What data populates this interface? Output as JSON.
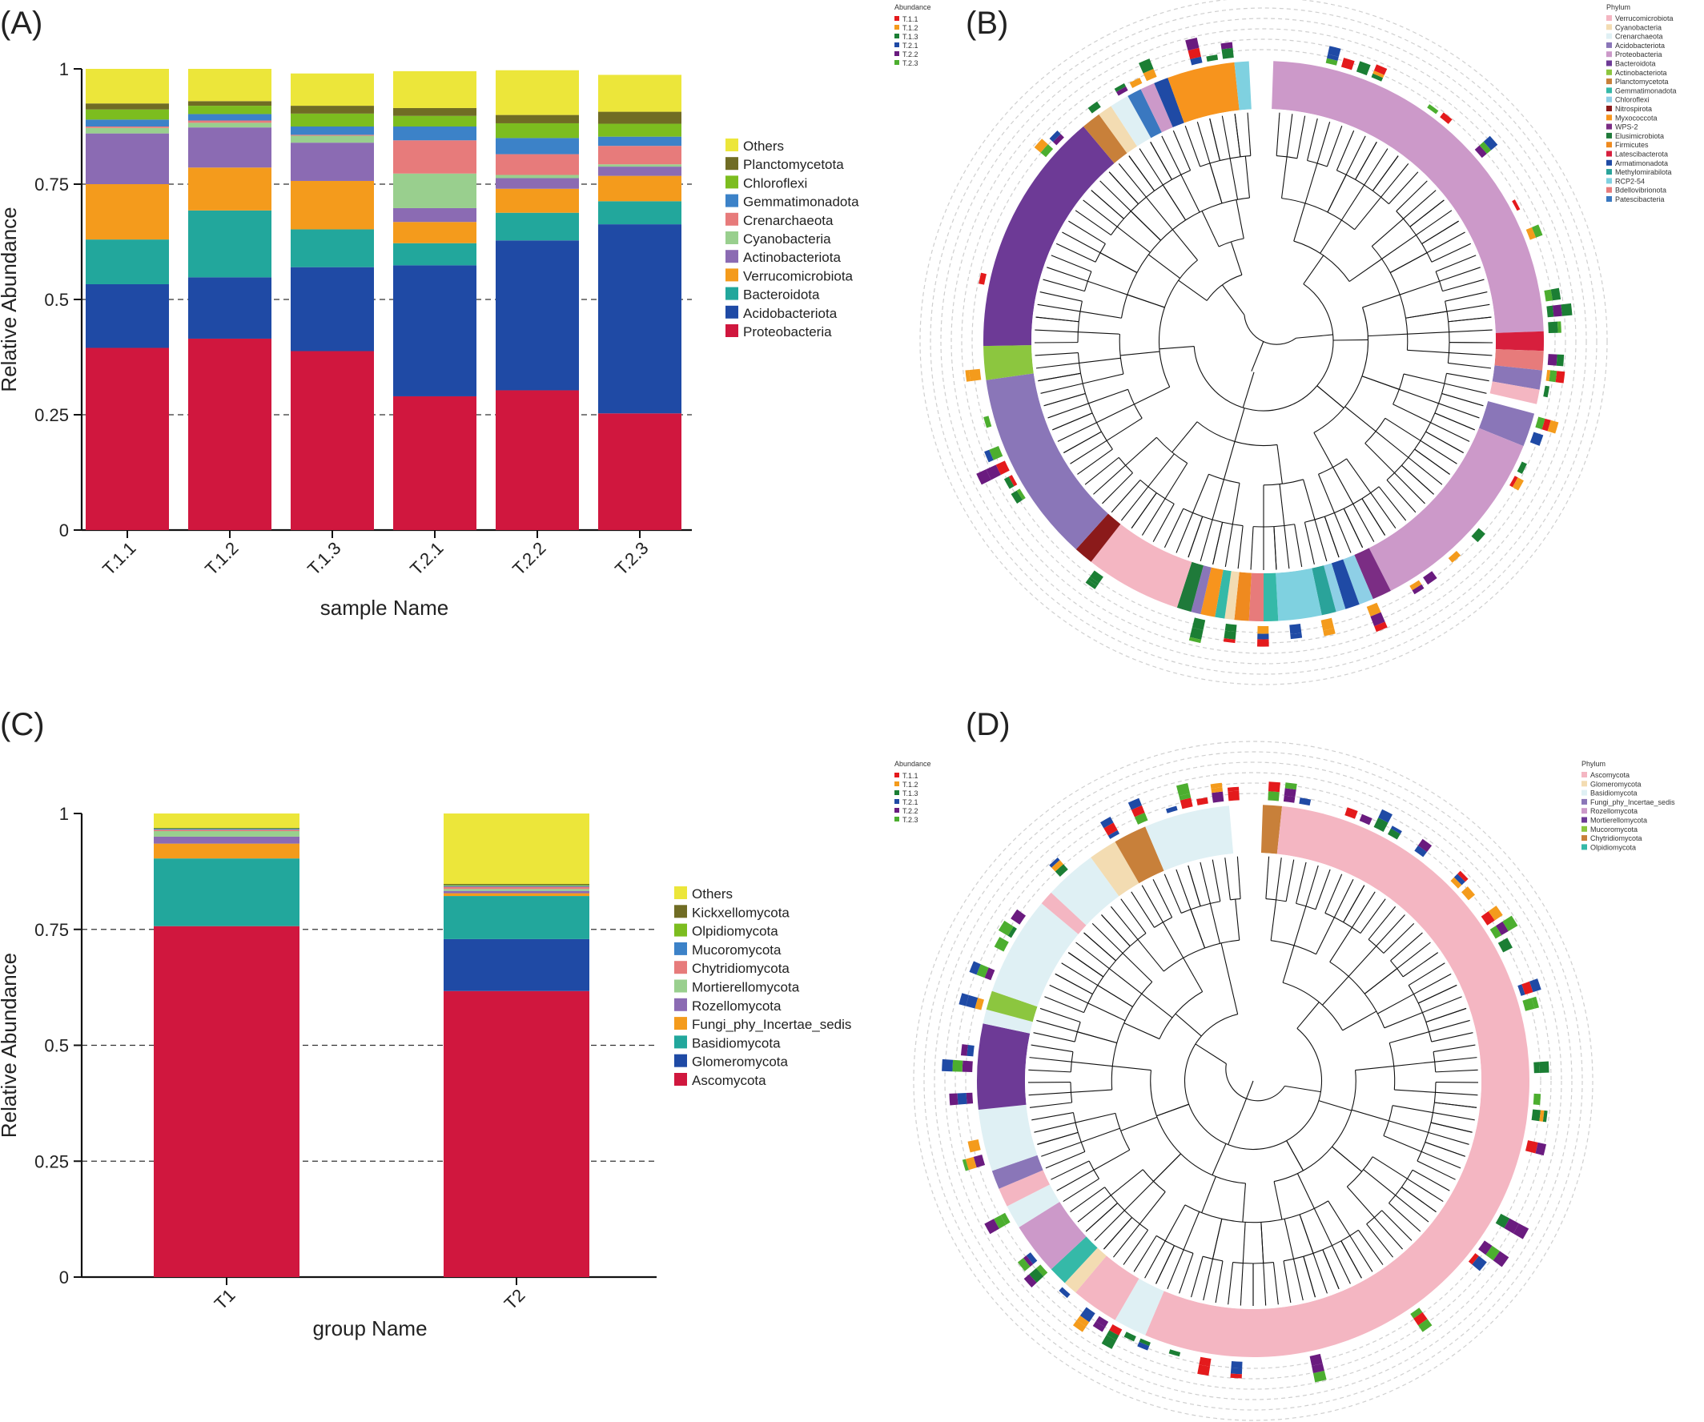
{
  "panels": {
    "a": "(A)",
    "b": "(B)",
    "c": "(C)",
    "d": "(D)"
  },
  "chart_data": [
    {
      "panel": "(A)",
      "type": "bar",
      "stacked": true,
      "categories": [
        "T.1.1",
        "T.1.2",
        "T.1.3",
        "T.2.1",
        "T.2.2",
        "T.2.3"
      ],
      "xlabel": "sample Name",
      "ylabel": "Relative Abundance",
      "ylim": [
        0,
        1
      ],
      "yticks": [
        "0",
        "0.25",
        "0.5",
        "0.75",
        "1"
      ],
      "grid": "dashed at 0.25, 0.5, 0.75",
      "legend_position": "right",
      "series": [
        {
          "name": "Proteobacteria",
          "color": "#d0173e",
          "values": [
            0.395,
            0.415,
            0.388,
            0.29,
            0.303,
            0.253
          ]
        },
        {
          "name": "Acidobacteriota",
          "color": "#1f4aa5",
          "values": [
            0.138,
            0.133,
            0.182,
            0.284,
            0.325,
            0.41
          ]
        },
        {
          "name": "Bacteroidota",
          "color": "#22a79c",
          "values": [
            0.097,
            0.145,
            0.082,
            0.048,
            0.06,
            0.05
          ]
        },
        {
          "name": "Verrucomicrobiota",
          "color": "#f49b1c",
          "values": [
            0.12,
            0.093,
            0.105,
            0.046,
            0.052,
            0.055
          ]
        },
        {
          "name": "Actinobacteriota",
          "color": "#8b6bb3",
          "values": [
            0.11,
            0.087,
            0.083,
            0.03,
            0.023,
            0.02
          ]
        },
        {
          "name": "Cyanobacteria",
          "color": "#99cf8e",
          "values": [
            0.012,
            0.01,
            0.015,
            0.075,
            0.007,
            0.005
          ]
        },
        {
          "name": "Crenarchaeota",
          "color": "#e77b7b",
          "values": [
            0.003,
            0.005,
            0.002,
            0.072,
            0.045,
            0.04
          ]
        },
        {
          "name": "Gemmatimonadota",
          "color": "#3c82c8",
          "values": [
            0.015,
            0.014,
            0.018,
            0.03,
            0.035,
            0.02
          ]
        },
        {
          "name": "Chloroflexi",
          "color": "#7cbd1f",
          "values": [
            0.022,
            0.018,
            0.028,
            0.023,
            0.032,
            0.028
          ]
        },
        {
          "name": "Planctomycetota",
          "color": "#706c24",
          "values": [
            0.013,
            0.01,
            0.017,
            0.017,
            0.018,
            0.026
          ]
        },
        {
          "name": "Others",
          "color": "#ece63a",
          "values": [
            0.075,
            0.07,
            0.07,
            0.08,
            0.097,
            0.08
          ]
        }
      ],
      "legend": [
        "Others",
        "Planctomycetota",
        "Chloroflexi",
        "Gemmatimonadota",
        "Crenarchaeota",
        "Cyanobacteria",
        "Actinobacteriota",
        "Verrucomicrobiota",
        "Bacteroidota",
        "Acidobacteriota",
        "Proteobacteria"
      ]
    },
    {
      "panel": "(C)",
      "type": "bar",
      "stacked": true,
      "categories": [
        "T1",
        "T2"
      ],
      "xlabel": "group Name",
      "ylabel": "Relative Abundance",
      "ylim": [
        0,
        1
      ],
      "yticks": [
        "0",
        "0.25",
        "0.5",
        "0.75",
        "1"
      ],
      "grid": "dashed at 0.25, 0.5, 0.75",
      "legend_position": "right",
      "series": [
        {
          "name": "Ascomycota",
          "color": "#d0173e",
          "values": [
            0.757,
            0.617
          ]
        },
        {
          "name": "Glomeromycota",
          "color": "#1f4aa5",
          "values": [
            0.0,
            0.112
          ]
        },
        {
          "name": "Basidiomycota",
          "color": "#22a79c",
          "values": [
            0.146,
            0.093
          ]
        },
        {
          "name": "Fungi_phy_Incertae_sedis",
          "color": "#f49b1c",
          "values": [
            0.032,
            0.006
          ]
        },
        {
          "name": "Rozellomycota",
          "color": "#8b6bb3",
          "values": [
            0.015,
            0.005
          ]
        },
        {
          "name": "Mortierellomycota",
          "color": "#99cf8e",
          "values": [
            0.012,
            0.004
          ]
        },
        {
          "name": "Chytridiomycota",
          "color": "#e77b7b",
          "values": [
            0.003,
            0.005
          ]
        },
        {
          "name": "Mucoromycota",
          "color": "#3c82c8",
          "values": [
            0.002,
            0.002
          ]
        },
        {
          "name": "Olpidiomycota",
          "color": "#7cbd1f",
          "values": [
            0.001,
            0.002
          ]
        },
        {
          "name": "Kickxellomycota",
          "color": "#706c24",
          "values": [
            0.001,
            0.002
          ]
        },
        {
          "name": "Others",
          "color": "#ece63a",
          "values": [
            0.031,
            0.152
          ]
        }
      ],
      "legend": [
        "Others",
        "Kickxellomycota",
        "Olpidiomycota",
        "Mucoromycota",
        "Chytridiomycota",
        "Mortierellomycota",
        "Rozellomycota",
        "Fungi_phy_Incertae_sedis",
        "Basidiomycota",
        "Glomeromycota",
        "Ascomycota"
      ]
    },
    {
      "panel": "(B)",
      "type": "circular-tree",
      "abundance_legend_title": "Abundance",
      "abundance_legend": [
        {
          "name": "T.1.1",
          "color": "#e41a1c"
        },
        {
          "name": "T.1.2",
          "color": "#f49b1c"
        },
        {
          "name": "T.1.3",
          "color": "#1b7e34"
        },
        {
          "name": "T.2.1",
          "color": "#1f4aa5"
        },
        {
          "name": "T.2.2",
          "color": "#6a1b7f"
        },
        {
          "name": "T.2.3",
          "color": "#4cae2f"
        }
      ],
      "phylum_legend_title": "Phylum",
      "phylum_legend": [
        {
          "name": "Verrucomicrobiota",
          "color": "#f4b6c2"
        },
        {
          "name": "Cyanobacteria",
          "color": "#f3dcb2"
        },
        {
          "name": "Crenarchaeota",
          "color": "#dff0f4"
        },
        {
          "name": "Acidobacteriota",
          "color": "#8a76b8"
        },
        {
          "name": "Proteobacteria",
          "color": "#cc99c9"
        },
        {
          "name": "Bacteroidota",
          "color": "#6d3a96"
        },
        {
          "name": "Actinobacteriota",
          "color": "#8cc63f"
        },
        {
          "name": "Planctomycetota",
          "color": "#c8803a"
        },
        {
          "name": "Gemmatimonadota",
          "color": "#35b9a8"
        },
        {
          "name": "Chloroflexi",
          "color": "#8ecfe6"
        },
        {
          "name": "Nitrospirota",
          "color": "#8b1a1a"
        },
        {
          "name": "Myxococcota",
          "color": "#f7941d"
        },
        {
          "name": "WPS-2",
          "color": "#7b2d84"
        },
        {
          "name": "Elusimicrobiota",
          "color": "#1f7a3a"
        },
        {
          "name": "Firmicutes",
          "color": "#ef8a1f"
        },
        {
          "name": "Latescibacterota",
          "color": "#d71f3d"
        },
        {
          "name": "Armatimonadota",
          "color": "#1f4aa5"
        },
        {
          "name": "Methylomirabilota",
          "color": "#2aa39a"
        },
        {
          "name": "RCP2-54",
          "color": "#7fd1e0"
        },
        {
          "name": "Bdellovibrionota",
          "color": "#e77b7b"
        },
        {
          "name": "Patescibacteria",
          "color": "#3a78c0"
        }
      ],
      "sectors": [
        {
          "phylum": "Proteobacteria",
          "color": "#cc99c9",
          "from": 2,
          "to": 88
        },
        {
          "phylum": "Latescibacterota",
          "color": "#d71f3d",
          "from": 88,
          "to": 92
        },
        {
          "phylum": "Bdellovibrionota",
          "color": "#e77b7b",
          "from": 92,
          "to": 96
        },
        {
          "phylum": "Acidobacteriota",
          "color": "#8a76b8",
          "from": 96,
          "to": 100
        },
        {
          "phylum": "Verrucomicrobiota",
          "color": "#f4b6c2",
          "from": 100,
          "to": 103
        },
        {
          "phylum": "Acidobacteriota",
          "color": "#8a76b8",
          "from": 105,
          "to": 112
        },
        {
          "phylum": "Proteobacteria",
          "color": "#cc99c9",
          "from": 112,
          "to": 153
        },
        {
          "phylum": "WPS-2",
          "color": "#7b2d84",
          "from": 153,
          "to": 157
        },
        {
          "phylum": "Chloroflexi",
          "color": "#8ecfe6",
          "from": 157,
          "to": 160
        },
        {
          "phylum": "Armatimonadota",
          "color": "#1f4aa5",
          "from": 160,
          "to": 163
        },
        {
          "phylum": "Chloroflexi",
          "color": "#8ecfe6",
          "from": 163,
          "to": 165
        },
        {
          "phylum": "Methylomirabilota",
          "color": "#2aa39a",
          "from": 165,
          "to": 168
        },
        {
          "phylum": "RCP2-54",
          "color": "#7fd1e0",
          "from": 168,
          "to": 177
        },
        {
          "phylum": "Gemmatimonadota",
          "color": "#35b9a8",
          "from": 177,
          "to": 180
        },
        {
          "phylum": "Bdellovibrionota",
          "color": "#e77b7b",
          "from": 180,
          "to": 183
        },
        {
          "phylum": "Firmicutes",
          "color": "#ef8a1f",
          "from": 183,
          "to": 186
        },
        {
          "phylum": "Cyanobacteria",
          "color": "#f3dcb2",
          "from": 186,
          "to": 188
        },
        {
          "phylum": "Gemmatimonadota",
          "color": "#35b9a8",
          "from": 188,
          "to": 190
        },
        {
          "phylum": "Myxococcota",
          "color": "#f7941d",
          "from": 190,
          "to": 193
        },
        {
          "phylum": "Acidobacteriota",
          "color": "#8a76b8",
          "from": 193,
          "to": 195
        },
        {
          "phylum": "Elusimicrobiota",
          "color": "#1f7a3a",
          "from": 195,
          "to": 198
        },
        {
          "phylum": "Verrucomicrobiota",
          "color": "#f4b6c2",
          "from": 198,
          "to": 218
        },
        {
          "phylum": "Nitrospirota",
          "color": "#8b1a1a",
          "from": 218,
          "to": 222
        },
        {
          "phylum": "Acidobacteriota",
          "color": "#8a76b8",
          "from": 222,
          "to": 262
        },
        {
          "phylum": "Actinobacteriota",
          "color": "#8cc63f",
          "from": 262,
          "to": 269
        },
        {
          "phylum": "Bacteroidota",
          "color": "#6d3a96",
          "from": 269,
          "to": 320
        },
        {
          "phylum": "Planctomycetota",
          "color": "#c8803a",
          "from": 320,
          "to": 324
        },
        {
          "phylum": "Cyanobacteria",
          "color": "#f3dcb2",
          "from": 324,
          "to": 327
        },
        {
          "phylum": "Crenarchaeota",
          "color": "#dff0f4",
          "from": 327,
          "to": 331
        },
        {
          "phylum": "Patescibacteria",
          "color": "#3a78c0",
          "from": 331,
          "to": 334
        },
        {
          "phylum": "Proteobacteria",
          "color": "#cc99c9",
          "from": 334,
          "to": 337
        },
        {
          "phylum": "Armatimonadota",
          "color": "#1f4aa5",
          "from": 337,
          "to": 340
        },
        {
          "phylum": "Myxococcota",
          "color": "#f7941d",
          "from": 340,
          "to": 354
        },
        {
          "phylum": "RCP2-54",
          "color": "#7fd1e0",
          "from": 354,
          "to": 357
        }
      ]
    },
    {
      "panel": "(D)",
      "type": "circular-tree",
      "abundance_legend_title": "Abundance",
      "abundance_legend": [
        {
          "name": "T.1.1",
          "color": "#e41a1c"
        },
        {
          "name": "T.1.2",
          "color": "#f49b1c"
        },
        {
          "name": "T.1.3",
          "color": "#1b7e34"
        },
        {
          "name": "T.2.1",
          "color": "#1f4aa5"
        },
        {
          "name": "T.2.2",
          "color": "#6a1b7f"
        },
        {
          "name": "T.2.3",
          "color": "#4cae2f"
        }
      ],
      "phylum_legend_title": "Phylum",
      "phylum_legend": [
        {
          "name": "Ascomycota",
          "color": "#f4b6c2"
        },
        {
          "name": "Glomeromycota",
          "color": "#f3dcb2"
        },
        {
          "name": "Basidiomycota",
          "color": "#dff0f4"
        },
        {
          "name": "Fungi_phy_Incertae_sedis",
          "color": "#8a76b8"
        },
        {
          "name": "Rozellomycota",
          "color": "#cc99c9"
        },
        {
          "name": "Mortierellomycota",
          "color": "#6d3a96"
        },
        {
          "name": "Mucoromycota",
          "color": "#8cc63f"
        },
        {
          "name": "Chytridiomycota",
          "color": "#c8803a"
        },
        {
          "name": "Olpidiomycota",
          "color": "#35b9a8"
        }
      ],
      "sectors": [
        {
          "phylum": "Chytridiomycota",
          "color": "#c8803a",
          "from": 2,
          "to": 6
        },
        {
          "phylum": "Ascomycota",
          "color": "#f4b6c2",
          "from": 6,
          "to": 203
        },
        {
          "phylum": "Basidiomycota",
          "color": "#dff0f4",
          "from": 203,
          "to": 210
        },
        {
          "phylum": "Ascomycota",
          "color": "#f4b6c2",
          "from": 210,
          "to": 220
        },
        {
          "phylum": "Glomeromycota",
          "color": "#f3dcb2",
          "from": 220,
          "to": 223
        },
        {
          "phylum": "Olpidiomycota",
          "color": "#35b9a8",
          "from": 223,
          "to": 227
        },
        {
          "phylum": "Rozellomycota",
          "color": "#cc99c9",
          "from": 227,
          "to": 238
        },
        {
          "phylum": "Basidiomycota",
          "color": "#dff0f4",
          "from": 238,
          "to": 243
        },
        {
          "phylum": "Ascomycota",
          "color": "#f4b6c2",
          "from": 243,
          "to": 247
        },
        {
          "phylum": "Fungi_phy_Incertae_sedis",
          "color": "#8a76b8",
          "from": 247,
          "to": 251
        },
        {
          "phylum": "Basidiomycota",
          "color": "#dff0f4",
          "from": 251,
          "to": 264
        },
        {
          "phylum": "Mortierellomycota",
          "color": "#6d3a96",
          "from": 264,
          "to": 282
        },
        {
          "phylum": "Basidiomycota",
          "color": "#dff0f4",
          "from": 282,
          "to": 285
        },
        {
          "phylum": "Mucoromycota",
          "color": "#8cc63f",
          "from": 285,
          "to": 289
        },
        {
          "phylum": "Basidiomycota",
          "color": "#dff0f4",
          "from": 289,
          "to": 310
        },
        {
          "phylum": "Ascomycota",
          "color": "#f4b6c2",
          "from": 310,
          "to": 313
        },
        {
          "phylum": "Basidiomycota",
          "color": "#dff0f4",
          "from": 313,
          "to": 324
        },
        {
          "phylum": "Glomeromycota",
          "color": "#f3dcb2",
          "from": 324,
          "to": 330
        },
        {
          "phylum": "Chytridiomycota",
          "color": "#c8803a",
          "from": 330,
          "to": 337
        },
        {
          "phylum": "Basidiomycota",
          "color": "#dff0f4",
          "from": 337,
          "to": 355
        }
      ]
    }
  ]
}
